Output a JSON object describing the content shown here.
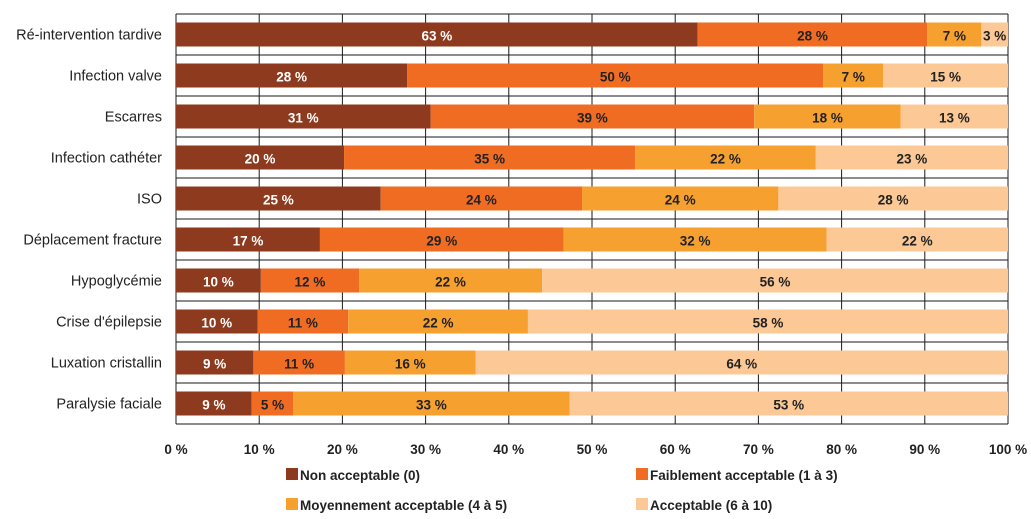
{
  "chart_data": {
    "type": "bar",
    "orientation": "horizontal",
    "stacked": true,
    "categories": [
      "Ré-intervention tardive",
      "Infection valve",
      "Escarres",
      "Infection cathéter",
      "ISO",
      "Déplacement fracture",
      "Hypoglycémie",
      "Crise d'épilepsie",
      "Luxation cristallin",
      "Paralysie faciale"
    ],
    "series": [
      {
        "name": "Non acceptable (0)",
        "color": "#8e3a1e",
        "values": [
          62.7,
          27.8,
          30.6,
          20.2,
          24.6,
          17.3,
          10.2,
          9.8,
          9.3,
          9.1
        ],
        "labels": [
          "63 %",
          "28 %",
          "31 %",
          "20 %",
          "25 %",
          "17 %",
          "10 %",
          "10 %",
          "9 %",
          "9 %"
        ]
      },
      {
        "name": "Faiblement acceptable (1 à 3)",
        "color": "#ef6c22",
        "values": [
          27.6,
          50.0,
          38.9,
          35.0,
          24.2,
          29.3,
          11.8,
          10.9,
          11.0,
          5.0
        ],
        "labels": [
          "28 %",
          "50 %",
          "39 %",
          "35 %",
          "24 %",
          "29 %",
          "12 %",
          "11 %",
          "11 %",
          "5 %"
        ]
      },
      {
        "name": "Moyennement acceptable (4 à 5)",
        "color": "#f6a02f",
        "values": [
          6.5,
          7.2,
          17.6,
          21.7,
          23.6,
          31.6,
          22.0,
          21.6,
          15.7,
          33.2
        ],
        "labels": [
          "7 %",
          "7 %",
          "18 %",
          "22 %",
          "24 %",
          "32 %",
          "22 %",
          "22 %",
          "16 %",
          "33 %"
        ]
      },
      {
        "name": "Acceptable (6 à 10)",
        "color": "#fbc896",
        "values": [
          3.2,
          15.0,
          12.9,
          23.1,
          27.6,
          21.8,
          56.0,
          57.7,
          64.0,
          52.7
        ],
        "labels": [
          "3 %",
          "15 %",
          "13 %",
          "23 %",
          "28 %",
          "22 %",
          "56 %",
          "58 %",
          "64 %",
          "53 %"
        ]
      }
    ],
    "xlim": [
      0,
      100
    ],
    "xticks": [
      "0 %",
      "10 %",
      "20 %",
      "30 %",
      "40 %",
      "50 %",
      "60 %",
      "70 %",
      "80 %",
      "90 %",
      "100 %"
    ],
    "grid": true,
    "legend_position": "bottom",
    "legend": [
      "Non acceptable (0)",
      "Faiblement acceptable (1 à 3)",
      "Moyennement acceptable (4 à 5)",
      "Acceptable (6 à 10)"
    ],
    "title": "",
    "xlabel": "",
    "ylabel": ""
  }
}
